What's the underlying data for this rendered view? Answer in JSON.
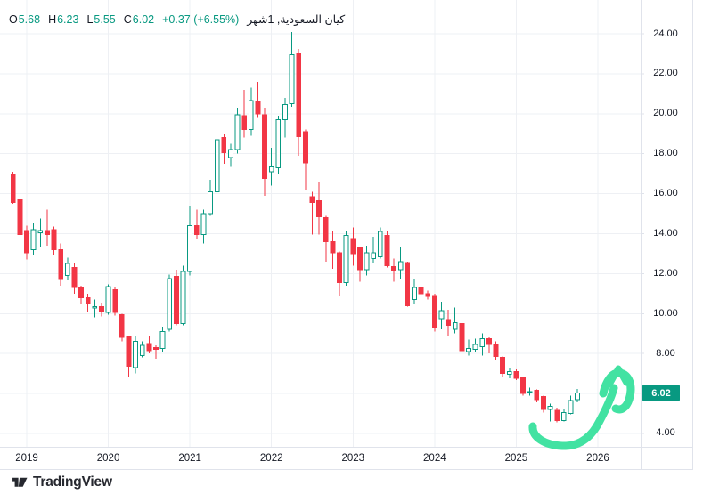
{
  "header": {
    "o_label": "O",
    "o": "5.68",
    "h_label": "H",
    "h": "6.23",
    "l_label": "L",
    "l": "5.55",
    "c_label": "C",
    "c": "6.02",
    "change": "+0.37 (+6.55%)",
    "symbol": "كيان السعودية, 1شهر"
  },
  "price_axis": {
    "last_price": "6.02",
    "labels": [
      {
        "text": "24.00",
        "value": 24
      },
      {
        "text": "22.00",
        "value": 22
      },
      {
        "text": "20.00",
        "value": 20
      },
      {
        "text": "18.00",
        "value": 18
      },
      {
        "text": "16.00",
        "value": 16
      },
      {
        "text": "14.00",
        "value": 14
      },
      {
        "text": "12.00",
        "value": 12
      },
      {
        "text": "10.00",
        "value": 10
      },
      {
        "text": "8.00",
        "value": 8
      },
      {
        "text": "4.00",
        "value": 4
      }
    ]
  },
  "time_axis": {
    "labels": [
      {
        "text": "2019"
      },
      {
        "text": "2020"
      },
      {
        "text": "2021"
      },
      {
        "text": "2022"
      },
      {
        "text": "2023"
      },
      {
        "text": "2024"
      },
      {
        "text": "2025"
      },
      {
        "text": "2026"
      }
    ]
  },
  "footer": {
    "brand": "TradingView"
  },
  "colors": {
    "up": "#089981",
    "down": "#f23645",
    "badge": "#089981",
    "arrow": "#42e2a2",
    "grid": "#eef0f4",
    "border": "#e0e3eb",
    "text": "#131722"
  },
  "chart_data": {
    "type": "candlestick",
    "title": "كيان السعودية",
    "interval": "1 شهر (1 month)",
    "start_month": "2018-11",
    "ohlc_order": [
      "open",
      "high",
      "low",
      "close"
    ],
    "legend_values": {
      "open": 5.68,
      "high": 6.23,
      "low": 5.55,
      "close": 6.02,
      "change": "+0.37",
      "change_pct": "+6.55%"
    },
    "price_line": 6.02,
    "y_axis": {
      "ticks": [
        4,
        6,
        8,
        10,
        12,
        14,
        16,
        18,
        20,
        22,
        24
      ],
      "visible_range": [
        3.1,
        24.7
      ],
      "grid": true
    },
    "x_axis": {
      "years": [
        2019,
        2020,
        2021,
        2022,
        2023,
        2024,
        2025,
        2026
      ],
      "grid": true
    },
    "candles": [
      [
        16.95,
        17.1,
        15.5,
        15.55
      ],
      [
        15.7,
        15.8,
        13.3,
        13.95
      ],
      [
        14.15,
        14.4,
        12.7,
        13.05
      ],
      [
        13.2,
        14.5,
        12.9,
        14.2
      ],
      [
        14.05,
        14.75,
        13.3,
        14.15
      ],
      [
        14.15,
        15.2,
        13.4,
        13.95
      ],
      [
        14.2,
        14.35,
        12.9,
        13.2
      ],
      [
        13.2,
        13.5,
        11.4,
        11.7
      ],
      [
        11.9,
        12.8,
        11.65,
        12.5
      ],
      [
        12.3,
        12.5,
        11.0,
        11.3
      ],
      [
        11.3,
        11.4,
        10.5,
        10.8
      ],
      [
        10.8,
        11.0,
        10.05,
        10.5
      ],
      [
        10.3,
        10.7,
        9.8,
        10.35
      ],
      [
        10.35,
        10.55,
        9.85,
        10.1
      ],
      [
        10.05,
        11.45,
        9.95,
        11.35
      ],
      [
        11.2,
        11.3,
        9.9,
        10.05
      ],
      [
        9.95,
        10.0,
        8.6,
        8.8
      ],
      [
        8.85,
        8.9,
        6.85,
        7.35
      ],
      [
        7.3,
        8.85,
        7.0,
        8.6
      ],
      [
        7.9,
        8.6,
        7.8,
        8.4
      ],
      [
        8.5,
        8.9,
        8.0,
        8.15
      ],
      [
        8.3,
        8.4,
        7.75,
        8.2
      ],
      [
        8.25,
        9.35,
        8.1,
        9.1
      ],
      [
        9.2,
        11.95,
        9.1,
        11.75
      ],
      [
        11.85,
        12.2,
        9.4,
        9.5
      ],
      [
        9.5,
        12.4,
        9.4,
        12.1
      ],
      [
        12.1,
        15.4,
        11.9,
        14.4
      ],
      [
        14.4,
        15.2,
        13.7,
        13.95
      ],
      [
        13.95,
        15.2,
        13.5,
        15.0
      ],
      [
        15.0,
        16.7,
        14.9,
        16.1
      ],
      [
        16.1,
        18.9,
        15.95,
        18.7
      ],
      [
        18.8,
        19.0,
        17.5,
        18.05
      ],
      [
        17.8,
        18.5,
        17.35,
        18.2
      ],
      [
        18.2,
        20.3,
        18.0,
        19.95
      ],
      [
        19.9,
        21.2,
        18.8,
        19.2
      ],
      [
        19.2,
        21.3,
        18.9,
        20.65
      ],
      [
        20.6,
        21.6,
        19.8,
        20.0
      ],
      [
        19.95,
        20.3,
        15.9,
        16.75
      ],
      [
        17.1,
        18.3,
        16.4,
        17.35
      ],
      [
        17.3,
        19.9,
        17.0,
        19.7
      ],
      [
        19.7,
        20.8,
        18.8,
        20.45
      ],
      [
        20.5,
        24.1,
        20.35,
        22.95
      ],
      [
        23.0,
        23.25,
        17.9,
        18.85
      ],
      [
        19.1,
        19.2,
        16.2,
        17.55
      ],
      [
        15.85,
        16.1,
        13.95,
        15.55
      ],
      [
        15.65,
        16.55,
        13.95,
        14.85
      ],
      [
        14.8,
        14.9,
        12.6,
        13.6
      ],
      [
        13.6,
        14.1,
        12.25,
        13.05
      ],
      [
        13.05,
        13.1,
        10.9,
        11.55
      ],
      [
        11.55,
        14.15,
        11.4,
        13.9
      ],
      [
        13.75,
        14.3,
        12.4,
        13.0
      ],
      [
        13.3,
        13.35,
        11.6,
        12.2
      ],
      [
        12.2,
        13.4,
        11.9,
        13.05
      ],
      [
        12.75,
        13.85,
        12.55,
        13.05
      ],
      [
        12.85,
        14.3,
        12.75,
        14.1
      ],
      [
        13.9,
        14.15,
        12.3,
        12.4
      ],
      [
        12.35,
        12.75,
        11.6,
        12.15
      ],
      [
        12.2,
        13.35,
        11.7,
        12.6
      ],
      [
        12.55,
        12.6,
        10.35,
        10.4
      ],
      [
        10.7,
        11.75,
        10.5,
        11.3
      ],
      [
        11.3,
        11.5,
        10.8,
        11.0
      ],
      [
        11.0,
        11.15,
        10.7,
        10.85
      ],
      [
        10.9,
        11.0,
        9.1,
        9.3
      ],
      [
        9.75,
        10.6,
        9.2,
        10.15
      ],
      [
        9.7,
        10.2,
        8.9,
        9.4
      ],
      [
        9.2,
        10.3,
        9.0,
        9.55
      ],
      [
        9.5,
        9.55,
        8.0,
        8.15
      ],
      [
        8.1,
        8.7,
        7.9,
        8.25
      ],
      [
        8.2,
        8.75,
        8.1,
        8.45
      ],
      [
        8.35,
        9.0,
        7.9,
        8.75
      ],
      [
        8.75,
        8.8,
        8.0,
        8.45
      ],
      [
        8.45,
        8.6,
        7.7,
        7.85
      ],
      [
        7.8,
        7.85,
        6.85,
        7.0
      ],
      [
        6.95,
        7.3,
        6.75,
        7.1
      ],
      [
        7.1,
        7.2,
        6.66,
        6.75
      ],
      [
        6.8,
        6.85,
        5.9,
        6.0
      ],
      [
        6.05,
        6.3,
        5.9,
        6.1
      ],
      [
        6.15,
        6.2,
        5.55,
        5.7
      ],
      [
        5.85,
        5.9,
        5.05,
        5.2
      ],
      [
        5.2,
        5.5,
        4.6,
        5.35
      ],
      [
        5.15,
        5.3,
        4.55,
        4.65
      ],
      [
        4.65,
        5.2,
        4.6,
        5.05
      ],
      [
        5.0,
        5.9,
        4.95,
        5.65
      ],
      [
        5.68,
        6.23,
        5.55,
        6.02
      ]
    ],
    "annotations": [
      {
        "type": "hand-drawn-arrow",
        "color": "#42e2a2",
        "description": "thick curved marker arrow swooping under the 2025 lows and pointing up past the 6.02 price line"
      }
    ],
    "legend_position": "top-left",
    "grid": "on"
  }
}
